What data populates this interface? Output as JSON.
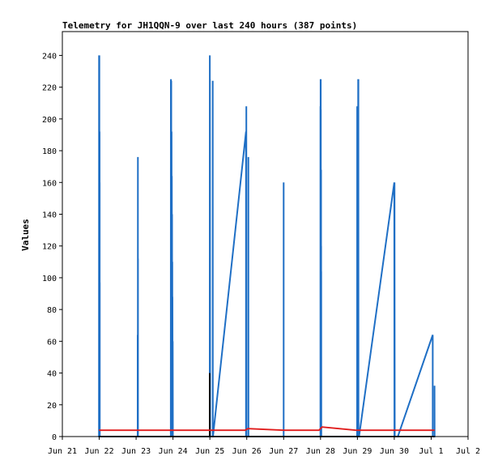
{
  "chart_data": {
    "type": "line",
    "title": "Telemetry for JH1QQN-9 over last 240 hours (387 points)",
    "xlabel": "",
    "ylabel": "Values",
    "xlim": [
      "2021-06-21T00:00",
      "2021-07-02T00:00"
    ],
    "ylim": [
      0,
      255
    ],
    "x_ticks": [
      {
        "at": "2021-06-21T00:00",
        "label": "Jun 21"
      },
      {
        "at": "2021-06-22T00:00",
        "label": "Jun 22"
      },
      {
        "at": "2021-06-23T00:00",
        "label": "Jun 23"
      },
      {
        "at": "2021-06-24T00:00",
        "label": "Jun 24"
      },
      {
        "at": "2021-06-25T00:00",
        "label": "Jun 25"
      },
      {
        "at": "2021-06-26T00:00",
        "label": "Jun 26"
      },
      {
        "at": "2021-06-27T00:00",
        "label": "Jun 27"
      },
      {
        "at": "2021-06-28T00:00",
        "label": "Jun 28"
      },
      {
        "at": "2021-06-29T00:00",
        "label": "Jun 29"
      },
      {
        "at": "2021-06-30T00:00",
        "label": "Jun 30"
      },
      {
        "at": "2021-07-01T00:00",
        "label": "Jul 1"
      },
      {
        "at": "2021-07-02T00:00",
        "label": "Jul 2"
      }
    ],
    "y_ticks": [
      0,
      20,
      40,
      60,
      80,
      100,
      120,
      140,
      160,
      180,
      200,
      220,
      240
    ],
    "grid": false,
    "legend": "none",
    "series": [
      {
        "color": "#1f6fc5",
        "x": [
          "2021-06-21T23:50",
          "2021-06-21T23:51",
          "2021-06-21T23:52",
          "2021-06-21T23:53",
          "2021-06-21T23:54",
          "2021-06-22T00:00",
          "2021-06-22T00:02",
          "2021-06-22T00:03",
          "2021-06-22T00:04",
          "2021-06-22T00:06",
          "2021-06-22T00:07",
          "2021-06-22T00:10",
          "2021-06-22T00:12",
          "2021-06-22T00:13",
          "2021-06-22T00:15",
          "2021-06-22T00:16",
          "2021-06-22T00:18",
          "2021-06-22T00:19",
          "2021-06-22T00:21",
          "2021-06-22T00:22",
          "2021-06-22T00:24",
          "2021-06-22T00:25",
          "2021-06-23T01:00",
          "2021-06-23T01:01",
          "2021-06-23T01:03",
          "2021-06-23T01:04",
          "2021-06-23T01:06",
          "2021-06-23T01:08",
          "2021-06-23T01:09",
          "2021-06-23T01:11",
          "2021-06-23T01:12",
          "2021-06-23T01:13",
          "2021-06-23T01:15",
          "2021-06-23T22:35",
          "2021-06-23T22:36",
          "2021-06-23T22:38",
          "2021-06-23T22:39",
          "2021-06-23T22:41",
          "2021-06-23T22:43",
          "2021-06-23T22:45",
          "2021-06-23T22:47",
          "2021-06-23T22:49",
          "2021-06-23T22:51",
          "2021-06-23T22:53",
          "2021-06-23T22:55",
          "2021-06-23T22:57",
          "2021-06-23T22:59",
          "2021-06-23T23:01",
          "2021-06-23T23:04",
          "2021-06-23T23:07",
          "2021-06-23T23:10",
          "2021-06-23T23:13",
          "2021-06-23T23:16",
          "2021-06-23T23:20",
          "2021-06-23T23:24",
          "2021-06-23T23:28",
          "2021-06-23T23:32",
          "2021-06-23T23:36",
          "2021-06-23T23:40",
          "2021-06-23T23:45",
          "2021-06-23T23:50",
          "2021-06-23T23:55",
          "2021-06-24T00:00",
          "2021-06-24T00:05",
          "2021-06-24T00:10",
          "2021-06-24T00:15",
          "2021-06-24T00:20",
          "2021-06-24T00:25",
          "2021-06-24T00:30",
          "2021-06-24T00:40",
          "2021-06-24T00:50",
          "2021-06-24T01:00",
          "2021-06-24T01:10",
          "2021-06-24T01:20",
          "2021-06-24T01:30",
          "2021-06-24T01:40",
          "2021-06-24T01:50",
          "2021-06-24T02:00",
          "2021-06-24T02:10",
          "2021-06-24T23:55",
          "2021-06-24T23:56",
          "2021-06-24T23:58",
          "2021-06-25T00:00",
          "2021-06-25T00:10",
          "2021-06-25T00:20",
          "2021-06-25T00:30",
          "2021-06-25T00:40",
          "2021-06-25T00:50",
          "2021-06-25T01:00",
          "2021-06-25T01:05",
          "2021-06-25T01:10",
          "2021-06-25T01:15",
          "2021-06-25T01:20",
          "2021-06-25T01:25",
          "2021-06-25T01:30",
          "2021-06-25T01:35",
          "2021-06-25T01:40",
          "2021-06-25T01:42",
          "2021-06-25T01:44",
          "2021-06-25T01:46",
          "2021-06-25T01:48",
          "2021-06-25T01:50",
          "2021-06-25T01:52",
          "2021-06-25T01:54",
          "2021-06-25T01:56",
          "2021-06-25T01:58",
          "2021-06-25T02:00",
          "2021-06-25T02:02",
          "2021-06-25T23:30",
          "2021-06-25T23:32",
          "2021-06-25T23:34",
          "2021-06-25T23:36",
          "2021-06-25T23:38",
          "2021-06-25T23:40",
          "2021-06-25T23:42",
          "2021-06-25T23:44",
          "2021-06-25T23:46",
          "2021-06-25T23:48",
          "2021-06-25T23:50",
          "2021-06-25T23:52",
          "2021-06-25T23:54",
          "2021-06-26T00:00",
          "2021-06-26T00:04",
          "2021-06-26T00:08",
          "2021-06-26T00:12",
          "2021-06-26T00:16",
          "2021-06-26T00:20",
          "2021-06-26T00:24",
          "2021-06-26T00:28",
          "2021-06-26T00:32",
          "2021-06-26T00:36",
          "2021-06-26T00:40",
          "2021-06-26T00:44",
          "2021-06-26T00:48",
          "2021-06-26T00:52",
          "2021-06-26T00:56",
          "2021-06-26T01:00",
          "2021-06-26T01:02",
          "2021-06-26T01:04",
          "2021-06-26T01:06",
          "2021-06-26T01:08",
          "2021-06-27T00:00",
          "2021-06-27T00:01",
          "2021-06-27T00:02",
          "2021-06-27T00:04",
          "2021-06-27T00:06",
          "2021-06-27T00:08",
          "2021-06-27T00:10",
          "2021-06-27T00:12",
          "2021-06-27T23:55",
          "2021-06-27T23:56",
          "2021-06-27T23:57",
          "2021-06-27T23:58",
          "2021-06-27T23:59",
          "2021-06-28T00:00",
          "2021-06-28T00:02",
          "2021-06-28T00:04",
          "2021-06-28T00:06",
          "2021-06-28T00:08",
          "2021-06-28T00:10",
          "2021-06-28T00:12",
          "2021-06-28T00:14",
          "2021-06-28T00:16",
          "2021-06-28T00:18",
          "2021-06-28T00:20",
          "2021-06-28T00:22",
          "2021-06-28T00:24",
          "2021-06-28T00:26",
          "2021-06-28T00:28",
          "2021-06-28T00:30",
          "2021-06-28T00:32",
          "2021-06-28T00:34",
          "2021-06-28T00:36",
          "2021-06-28T00:38",
          "2021-06-28T00:40",
          "2021-06-28T00:42",
          "2021-06-28T00:44",
          "2021-06-28T00:46",
          "2021-06-28T00:48",
          "2021-06-28T00:50",
          "2021-06-28T00:52",
          "2021-06-28T00:54",
          "2021-06-28T00:56",
          "2021-06-28T00:58",
          "2021-06-28T01:00",
          "2021-06-28T01:02",
          "2021-06-28T01:04",
          "2021-06-28T01:06",
          "2021-06-28T01:08",
          "2021-06-28T01:10",
          "2021-06-28T23:50",
          "2021-06-28T23:51",
          "2021-06-28T23:52",
          "2021-06-28T23:53",
          "2021-06-28T23:54",
          "2021-06-28T23:56",
          "2021-06-28T23:58",
          "2021-06-29T00:00",
          "2021-06-29T00:05",
          "2021-06-29T00:10",
          "2021-06-29T00:15",
          "2021-06-29T00:20",
          "2021-06-29T00:25",
          "2021-06-29T00:30",
          "2021-06-29T00:35",
          "2021-06-29T00:40",
          "2021-06-29T00:42",
          "2021-06-29T00:44",
          "2021-06-29T00:46",
          "2021-06-29T00:48",
          "2021-06-29T00:50",
          "2021-06-29T00:52",
          "2021-06-29T00:54",
          "2021-06-29T00:56",
          "2021-06-29T00:58",
          "2021-06-29T01:00",
          "2021-06-29T01:05",
          "2021-06-30T00:00",
          "2021-06-30T00:05",
          "2021-06-30T00:10",
          "2021-06-30T00:20",
          "2021-06-30T00:30",
          "2021-06-30T00:40",
          "2021-06-30T00:50",
          "2021-06-30T01:00",
          "2021-06-30T01:10",
          "2021-06-30T01:20",
          "2021-06-30T01:30",
          "2021-06-30T01:40",
          "2021-06-30T01:50",
          "2021-06-30T02:00",
          "2021-06-30T02:10",
          "2021-06-30T02:15",
          "2021-06-30T02:20",
          "2021-07-01T01:00",
          "2021-07-01T01:02",
          "2021-07-01T01:04",
          "2021-07-01T01:06",
          "2021-07-01T01:08",
          "2021-07-01T01:10",
          "2021-07-01T01:20",
          "2021-07-01T01:30",
          "2021-07-01T01:40",
          "2021-07-01T01:50",
          "2021-07-01T02:00",
          "2021-07-01T02:10",
          "2021-07-01T02:12",
          "2021-07-01T02:14"
        ],
        "values": [
          0,
          240,
          0,
          120,
          0,
          0,
          145,
          225,
          0,
          240,
          0,
          0,
          95,
          0,
          192,
          0,
          160,
          0,
          97,
          0,
          0,
          0,
          0,
          64,
          0,
          55,
          0,
          0,
          176,
          0,
          112,
          0,
          0,
          0,
          224,
          0,
          225,
          0,
          224,
          0,
          128,
          0,
          224,
          0,
          110,
          0,
          48,
          0,
          192,
          0,
          80,
          0,
          164,
          0,
          140,
          0,
          110,
          0,
          88,
          0,
          60,
          0,
          0,
          0,
          0,
          0,
          0,
          0,
          0,
          0,
          0,
          0,
          0,
          0,
          0,
          0,
          0,
          0,
          0,
          0,
          240,
          0,
          225,
          0,
          0,
          0,
          0,
          0,
          0,
          0,
          0,
          0,
          0,
          0,
          0,
          0,
          0,
          0,
          0,
          0,
          0,
          0,
          224,
          0,
          0,
          0,
          0,
          0,
          192,
          0,
          150,
          0,
          100,
          0,
          208,
          0,
          0,
          0,
          0,
          0,
          0,
          0,
          0,
          0,
          0,
          0,
          0,
          0,
          0,
          0,
          0,
          0,
          0,
          0,
          0,
          0,
          0,
          176,
          0,
          0,
          0,
          0,
          160,
          0,
          0,
          0,
          0,
          0,
          0,
          0,
          208,
          0,
          104,
          0,
          208,
          0,
          225,
          0,
          225,
          0,
          206,
          0,
          140,
          0,
          168,
          0,
          120,
          0,
          104,
          0,
          0,
          0,
          0,
          0,
          0,
          0,
          0,
          0,
          0,
          0,
          0,
          0,
          0,
          0,
          0,
          0,
          0,
          0,
          0,
          0,
          0,
          208,
          0,
          192,
          0,
          186,
          0,
          100,
          0,
          150,
          0,
          120,
          0,
          225,
          0,
          225,
          0,
          0,
          0,
          0,
          0,
          0,
          0,
          0,
          0,
          0,
          0,
          160,
          0,
          160,
          0,
          0,
          0,
          0,
          0,
          0,
          0,
          0,
          0,
          0,
          0,
          0,
          0,
          0,
          64,
          0,
          0,
          0,
          0,
          0,
          0,
          0,
          0,
          0,
          0,
          0,
          32,
          0
        ]
      },
      {
        "color": "#000000",
        "x": [
          "2021-06-21T23:50",
          "2021-06-24T23:50",
          "2021-06-24T23:51",
          "2021-06-24T23:52",
          "2021-06-24T23:53",
          "2021-07-01T02:14"
        ],
        "values": [
          0,
          0,
          40,
          12,
          0,
          0
        ]
      },
      {
        "color": "#e01b1b",
        "x": [
          "2021-06-21T23:50",
          "2021-06-25T23:00",
          "2021-06-26T00:40",
          "2021-06-27T00:00",
          "2021-06-27T23:00",
          "2021-06-28T01:00",
          "2021-06-28T23:00",
          "2021-06-29T00:30",
          "2021-06-30T00:00",
          "2021-07-01T02:14"
        ],
        "values": [
          4,
          4,
          5,
          4,
          4,
          6,
          4,
          4,
          4,
          4
        ]
      }
    ]
  }
}
